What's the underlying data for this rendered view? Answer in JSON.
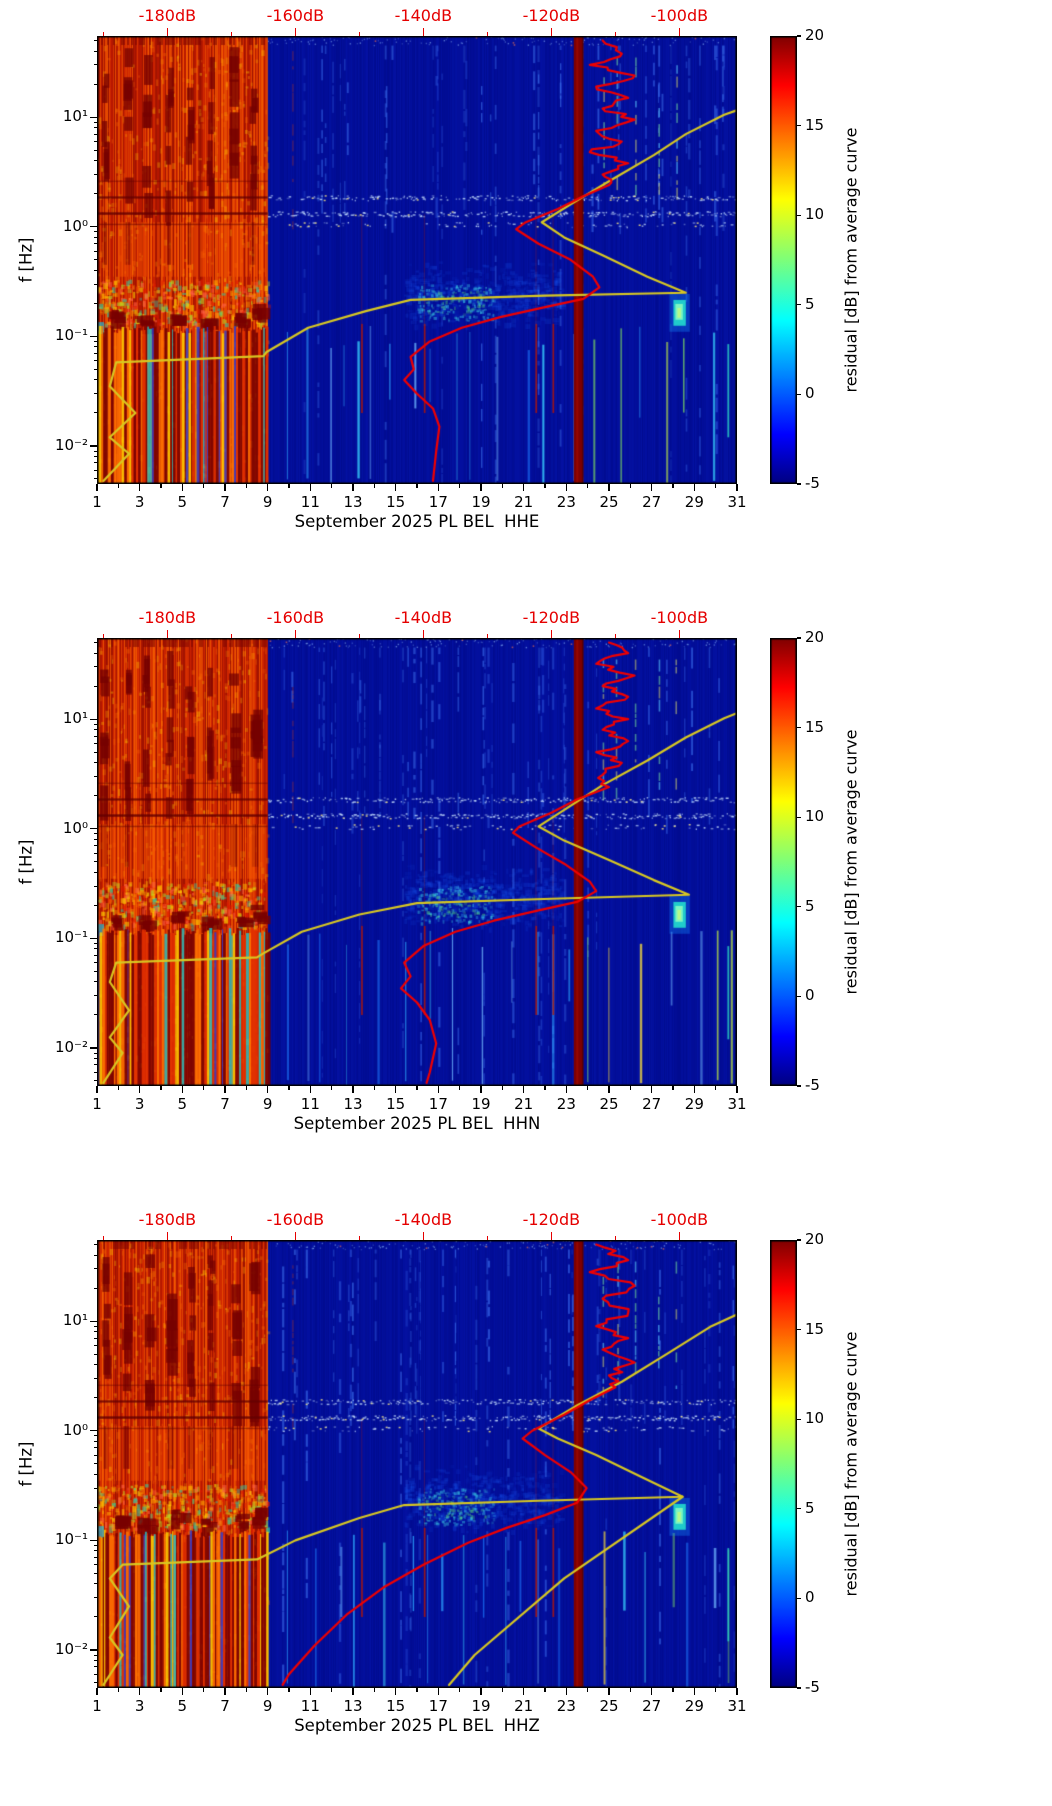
{
  "chart_data": {
    "type": "heatmap",
    "subtype": "seismic-noise-residual-spectrogram",
    "colorbar": {
      "label": "residual [dB] from average curve",
      "min": -5,
      "max": 20,
      "ticks": [
        20,
        15,
        10,
        5,
        0,
        -5
      ]
    },
    "shared": {
      "ylabel": "f [Hz]",
      "y_scale": "log",
      "y_range_hz": [
        0.0045,
        55
      ],
      "y_tick_values": [
        0.01,
        0.1,
        1,
        10
      ],
      "y_tick_labels": [
        "10⁻²",
        "10⁻¹",
        "10⁰",
        "10¹"
      ],
      "x_range_days": [
        1,
        31
      ],
      "x_tick_days": [
        1,
        3,
        5,
        7,
        9,
        11,
        13,
        15,
        17,
        19,
        21,
        23,
        25,
        27,
        29,
        31
      ],
      "top_axis_db_ticks": [
        -180,
        -160,
        -140,
        -120,
        -100
      ],
      "top_axis_db_labels": [
        "-180dB",
        "-160dB",
        "-140dB",
        "-120dB",
        "-100dB"
      ],
      "top_axis_db_minor_ticks": [
        -190,
        -170,
        -150,
        -130,
        -110
      ],
      "top_axis_db_range": [
        -191,
        -91
      ],
      "features": {
        "saturated_hot_region_days": [
          1,
          9
        ],
        "dark_red_band_days": [
          23.35,
          23.8
        ],
        "speckled_horizontal_band_hz": [
          1.2,
          2.1
        ],
        "microseism_cloud": {
          "days": [
            15.5,
            22.5
          ],
          "hz": [
            0.12,
            0.45
          ]
        },
        "bright_cyan_blob": {
          "day": 28.3,
          "hz": [
            0.13,
            0.21
          ]
        },
        "red_low_freq_streak_days": [
          13.38,
          16.32,
          21.55,
          22.35
        ]
      }
    },
    "panels": [
      {
        "channel": "HHE",
        "xlabel": "September 2025 PL BEL  HHE",
        "curves": [
          {
            "name": "yellow-average-curve",
            "points": [
              [
                -190,
                0.0048
              ],
              [
                -186,
                0.0085
              ],
              [
                -189,
                0.012
              ],
              [
                -185,
                0.02
              ],
              [
                -189,
                0.035
              ],
              [
                -188,
                0.058
              ],
              [
                -165,
                0.066
              ],
              [
                -164.5,
                0.072
              ],
              [
                -158,
                0.12
              ],
              [
                -149,
                0.17
              ],
              [
                -142,
                0.215
              ],
              [
                -121,
                0.235
              ],
              [
                -99,
                0.25
              ],
              [
                -105,
                0.35
              ],
              [
                -112,
                0.55
              ],
              [
                -118,
                0.8
              ],
              [
                -121.5,
                1.1
              ],
              [
                -117,
                1.6
              ],
              [
                -111,
                2.6
              ],
              [
                -104,
                4.5
              ],
              [
                -99,
                7
              ],
              [
                -93,
                10.5
              ],
              [
                -87,
                14
              ]
            ]
          },
          {
            "name": "red-average-curve",
            "jitter_above_hz": 2.3,
            "points": [
              [
                -112,
                50
              ],
              [
                -109,
                38
              ],
              [
                -114,
                30
              ],
              [
                -107,
                24
              ],
              [
                -113,
                19
              ],
              [
                -108,
                15
              ],
              [
                -112,
                12
              ],
              [
                -107,
                9.5
              ],
              [
                -113,
                7.5
              ],
              [
                -109,
                6
              ],
              [
                -114,
                4.8
              ],
              [
                -108,
                3.8
              ],
              [
                -112,
                3
              ],
              [
                -111,
                2.4
              ],
              [
                -115,
                1.9
              ],
              [
                -119,
                1.45
              ],
              [
                -124,
                1.1
              ],
              [
                -125.5,
                0.95
              ],
              [
                -122,
                0.7
              ],
              [
                -117,
                0.5
              ],
              [
                -113.5,
                0.35
              ],
              [
                -112.5,
                0.28
              ],
              [
                -115,
                0.22
              ],
              [
                -121,
                0.185
              ],
              [
                -128,
                0.15
              ],
              [
                -134,
                0.12
              ],
              [
                -139,
                0.09
              ],
              [
                -142,
                0.065
              ],
              [
                -141.5,
                0.05
              ],
              [
                -143,
                0.04
              ],
              [
                -141,
                0.03
              ],
              [
                -138.5,
                0.022
              ],
              [
                -137.5,
                0.015
              ],
              [
                -138,
                0.009
              ],
              [
                -138.5,
                0.0048
              ]
            ]
          }
        ]
      },
      {
        "channel": "HHN",
        "xlabel": "September 2025 PL BEL  HHN",
        "curves": [
          {
            "name": "yellow-average-curve",
            "points": [
              [
                -190,
                0.0048
              ],
              [
                -187,
                0.009
              ],
              [
                -189,
                0.0125
              ],
              [
                -186,
                0.022
              ],
              [
                -189,
                0.04
              ],
              [
                -188,
                0.06
              ],
              [
                -166,
                0.067
              ],
              [
                -165,
                0.073
              ],
              [
                -159,
                0.115
              ],
              [
                -150,
                0.165
              ],
              [
                -141,
                0.21
              ],
              [
                -120,
                0.23
              ],
              [
                -98.5,
                0.25
              ],
              [
                -104,
                0.34
              ],
              [
                -111,
                0.52
              ],
              [
                -118,
                0.78
              ],
              [
                -122,
                1.05
              ],
              [
                -117.5,
                1.55
              ],
              [
                -112,
                2.5
              ],
              [
                -105,
                4.2
              ],
              [
                -99,
                6.8
              ],
              [
                -93,
                10.2
              ],
              [
                -87,
                14
              ]
            ]
          },
          {
            "name": "red-average-curve",
            "jitter_above_hz": 2.3,
            "points": [
              [
                -111,
                50
              ],
              [
                -108,
                40
              ],
              [
                -113,
                32
              ],
              [
                -107,
                25
              ],
              [
                -112,
                20
              ],
              [
                -108,
                16
              ],
              [
                -113,
                12.5
              ],
              [
                -108,
                10
              ],
              [
                -112,
                8
              ],
              [
                -108,
                6.3
              ],
              [
                -113,
                5
              ],
              [
                -109,
                4
              ],
              [
                -112,
                3.1
              ],
              [
                -111,
                2.4
              ],
              [
                -116,
                1.85
              ],
              [
                -120,
                1.4
              ],
              [
                -125,
                1.05
              ],
              [
                -126,
                0.92
              ],
              [
                -122.5,
                0.68
              ],
              [
                -118,
                0.48
              ],
              [
                -114,
                0.33
              ],
              [
                -113,
                0.27
              ],
              [
                -116,
                0.215
              ],
              [
                -122,
                0.18
              ],
              [
                -129,
                0.145
              ],
              [
                -135,
                0.115
              ],
              [
                -140,
                0.085
              ],
              [
                -143,
                0.06
              ],
              [
                -142,
                0.045
              ],
              [
                -143.5,
                0.035
              ],
              [
                -141,
                0.026
              ],
              [
                -139,
                0.018
              ],
              [
                -138,
                0.011
              ],
              [
                -139,
                0.006
              ],
              [
                -139.5,
                0.0048
              ]
            ]
          }
        ]
      },
      {
        "channel": "HHZ",
        "xlabel": "September 2025 PL BEL  HHZ",
        "curves": [
          {
            "name": "yellow-average-curve",
            "points": [
              [
                -190,
                0.0048
              ],
              [
                -187,
                0.009
              ],
              [
                -189,
                0.013
              ],
              [
                -186,
                0.025
              ],
              [
                -189,
                0.045
              ],
              [
                -187,
                0.06
              ],
              [
                -166,
                0.067
              ],
              [
                -160,
                0.1
              ],
              [
                -150,
                0.16
              ],
              [
                -143,
                0.21
              ],
              [
                -122,
                0.23
              ],
              [
                -99.5,
                0.25
              ],
              [
                -106,
                0.38
              ],
              [
                -113,
                0.6
              ],
              [
                -119,
                0.85
              ],
              [
                -122,
                1.05
              ],
              [
                -116,
                1.7
              ],
              [
                -109,
                2.8
              ],
              [
                -102,
                5
              ],
              [
                -95,
                9
              ],
              [
                -89,
                13
              ]
            ]
          },
          {
            "name": "yellow-average-curve-lower-branch",
            "points": [
              [
                -99.5,
                0.25
              ],
              [
                -118,
                0.045
              ],
              [
                -132,
                0.009
              ],
              [
                -136,
                0.0048
              ]
            ]
          },
          {
            "name": "red-average-curve",
            "jitter_above_hz": 2.3,
            "points": [
              [
                -113,
                50
              ],
              [
                -108,
                36
              ],
              [
                -114,
                28
              ],
              [
                -107,
                21
              ],
              [
                -112,
                16
              ],
              [
                -108,
                12
              ],
              [
                -113,
                9
              ],
              [
                -108,
                7
              ],
              [
                -112,
                5.5
              ],
              [
                -107,
                4.2
              ],
              [
                -111,
                3.2
              ],
              [
                -110,
                2.5
              ],
              [
                -114,
                1.9
              ],
              [
                -118,
                1.4
              ],
              [
                -123,
                1.0
              ],
              [
                -124.5,
                0.85
              ],
              [
                -121,
                0.6
              ],
              [
                -117,
                0.42
              ],
              [
                -114.5,
                0.3
              ],
              [
                -116,
                0.22
              ],
              [
                -121,
                0.17
              ],
              [
                -127,
                0.13
              ],
              [
                -133,
                0.095
              ],
              [
                -140,
                0.06
              ],
              [
                -146,
                0.038
              ],
              [
                -152,
                0.021
              ],
              [
                -157,
                0.011
              ],
              [
                -161,
                0.006
              ],
              [
                -162,
                0.0048
              ]
            ]
          }
        ]
      }
    ]
  },
  "colors": {
    "curve_yellow": "#d8c822",
    "curve_red": "#f00000",
    "top_axis_red": "#e50000",
    "axis_black": "#000000",
    "background": "#ffffff",
    "spectrogram_base_blue": "#000a8c",
    "hot_region_red": "#c01c00",
    "dark_band_red": "#7f0000"
  }
}
